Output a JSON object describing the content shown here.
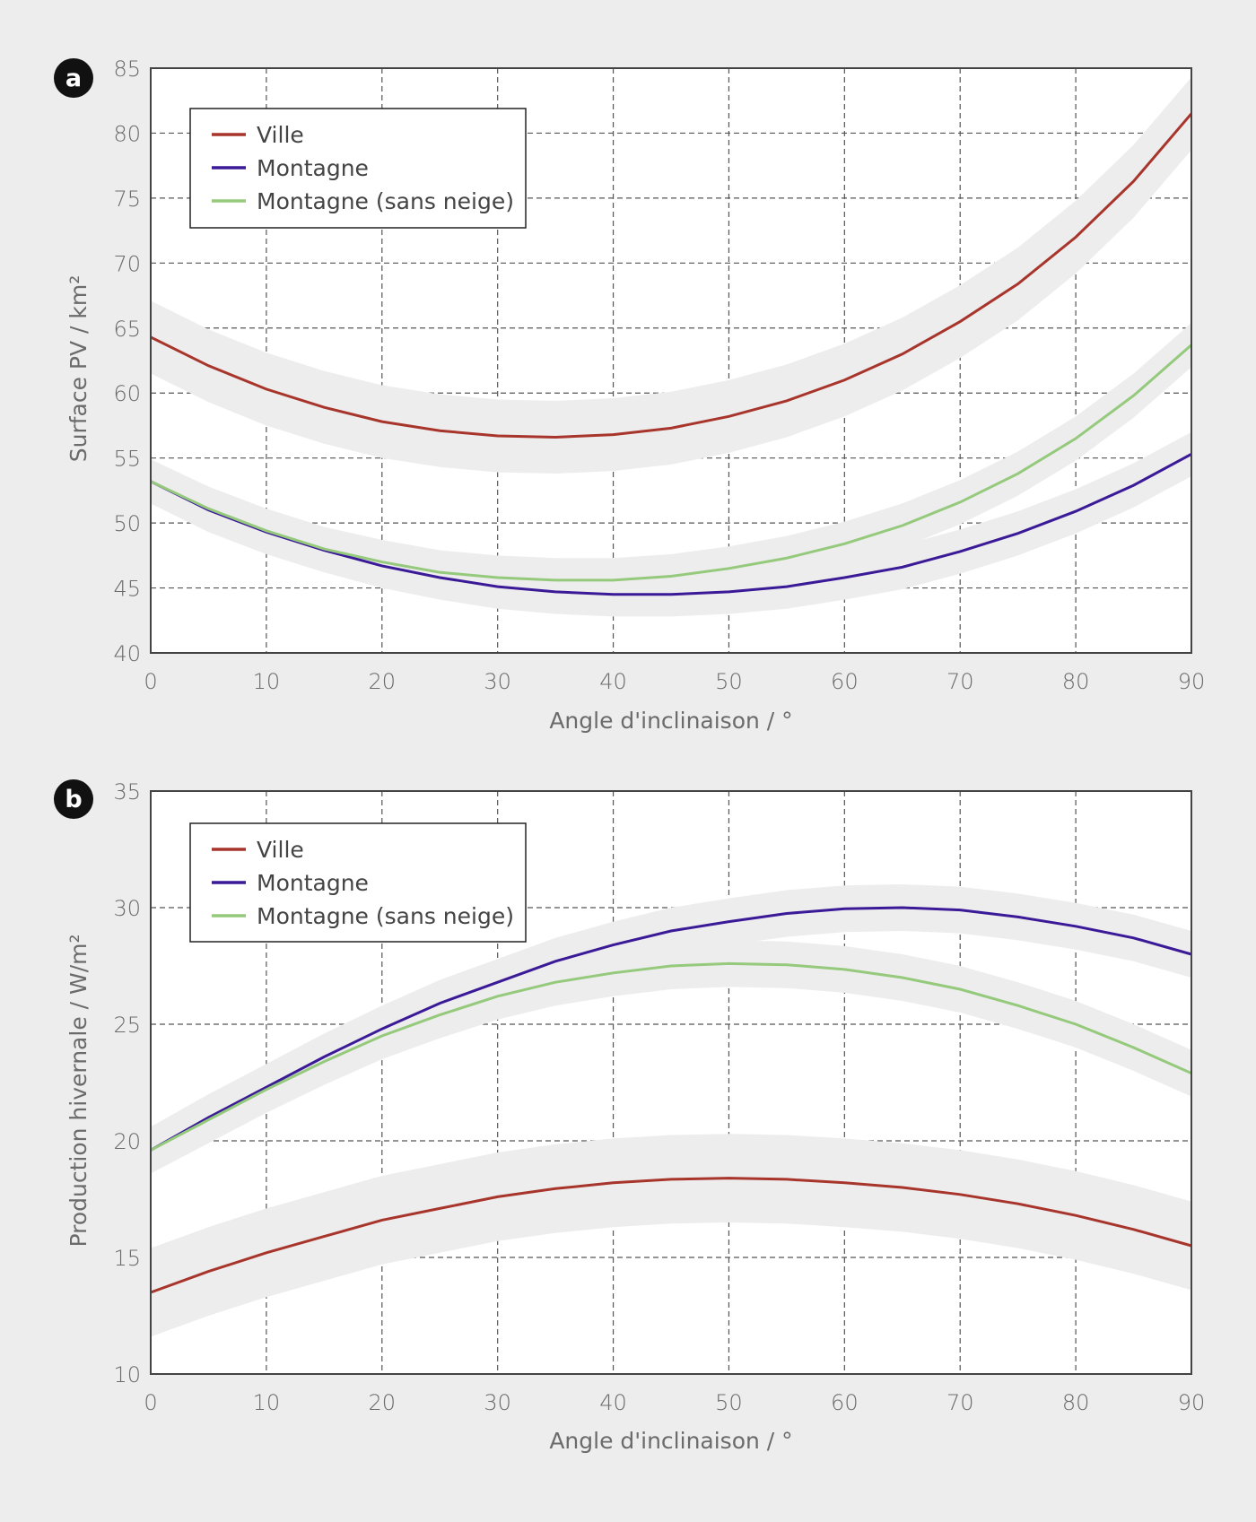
{
  "chart_data": [
    {
      "panel_label": "a",
      "type": "line",
      "xlabel": "Angle d'inclinaison / °",
      "ylabel": "Surface PV / km²",
      "xlim": [
        0,
        90
      ],
      "ylim": [
        40,
        85
      ],
      "xticks": [
        0,
        10,
        20,
        30,
        40,
        50,
        60,
        70,
        80,
        90
      ],
      "yticks": [
        40,
        45,
        50,
        55,
        60,
        65,
        70,
        75,
        80,
        85
      ],
      "grid": true,
      "legend_position": "top-left",
      "x": [
        0,
        5,
        10,
        15,
        20,
        25,
        30,
        35,
        40,
        45,
        50,
        55,
        60,
        65,
        70,
        75,
        80,
        85,
        90
      ],
      "series": [
        {
          "name": "Ville",
          "color": "#a8352b",
          "band": 2.8,
          "values": [
            64.3,
            62.1,
            60.3,
            58.9,
            57.8,
            57.1,
            56.7,
            56.6,
            56.8,
            57.3,
            58.2,
            59.4,
            61.0,
            63.0,
            65.5,
            68.4,
            72.0,
            76.3,
            81.5
          ]
        },
        {
          "name": "Montagne",
          "color": "#3b1a98",
          "band": 1.7,
          "values": [
            53.2,
            51.0,
            49.3,
            47.9,
            46.7,
            45.8,
            45.1,
            44.7,
            44.5,
            44.5,
            44.7,
            45.1,
            45.8,
            46.6,
            47.8,
            49.2,
            50.9,
            52.9,
            55.3
          ]
        },
        {
          "name": "Montagne (sans neige)",
          "color": "#95c97c",
          "band": 1.7,
          "values": [
            53.2,
            51.1,
            49.4,
            48.0,
            47.0,
            46.2,
            45.8,
            45.6,
            45.6,
            45.9,
            46.5,
            47.3,
            48.4,
            49.8,
            51.6,
            53.8,
            56.5,
            59.8,
            63.7
          ]
        }
      ]
    },
    {
      "panel_label": "b",
      "type": "line",
      "xlabel": "Angle d'inclinaison / °",
      "ylabel": "Production hivernale / W/m²",
      "xlim": [
        0,
        90
      ],
      "ylim": [
        10,
        35
      ],
      "xticks": [
        0,
        10,
        20,
        30,
        40,
        50,
        60,
        70,
        80,
        90
      ],
      "yticks": [
        10,
        15,
        20,
        25,
        30,
        35
      ],
      "grid": true,
      "legend_position": "top-left",
      "x": [
        0,
        5,
        10,
        15,
        20,
        25,
        30,
        35,
        40,
        45,
        50,
        55,
        60,
        65,
        70,
        75,
        80,
        85,
        90
      ],
      "series": [
        {
          "name": "Ville",
          "color": "#a8352b",
          "band": 1.9,
          "values": [
            13.5,
            14.4,
            15.2,
            15.9,
            16.6,
            17.1,
            17.6,
            17.95,
            18.2,
            18.35,
            18.4,
            18.35,
            18.2,
            18.0,
            17.7,
            17.3,
            16.8,
            16.2,
            15.5
          ]
        },
        {
          "name": "Montagne",
          "color": "#3b1a98",
          "band": 1.0,
          "values": [
            19.6,
            21.0,
            22.3,
            23.6,
            24.8,
            25.9,
            26.8,
            27.7,
            28.4,
            29.0,
            29.4,
            29.75,
            29.95,
            30.0,
            29.9,
            29.6,
            29.2,
            28.7,
            28.0
          ]
        },
        {
          "name": "Montagne (sans neige)",
          "color": "#95c97c",
          "band": 1.0,
          "values": [
            19.6,
            20.9,
            22.2,
            23.4,
            24.5,
            25.4,
            26.2,
            26.8,
            27.2,
            27.5,
            27.6,
            27.55,
            27.35,
            27.0,
            26.5,
            25.8,
            25.0,
            24.0,
            22.9
          ]
        }
      ]
    }
  ]
}
